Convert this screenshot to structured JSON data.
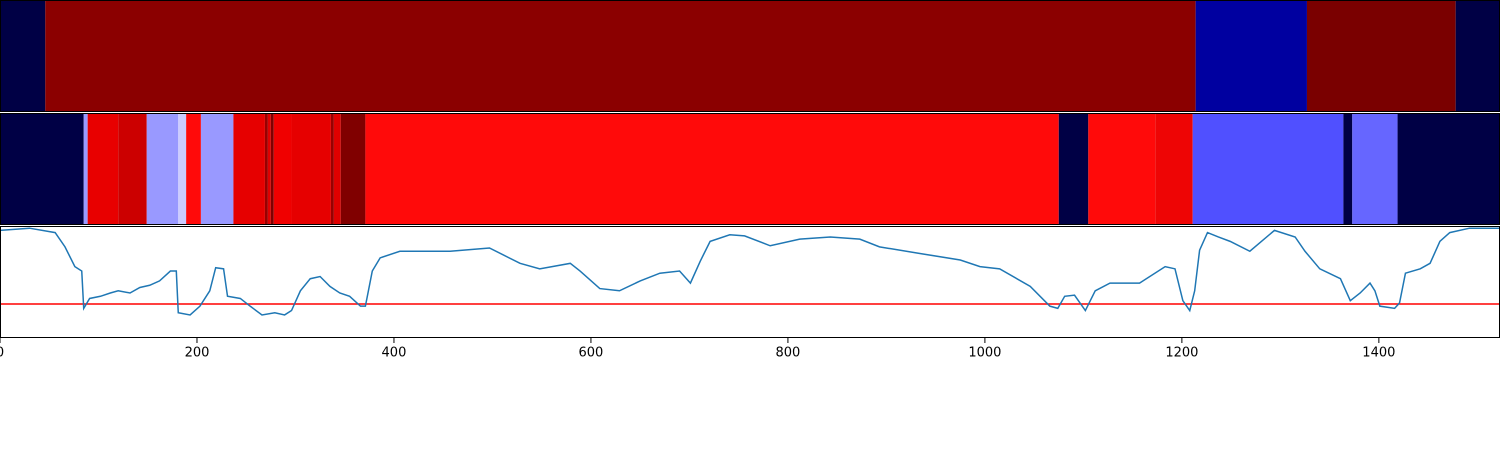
{
  "chart_data": {
    "type": "segments",
    "xlim": [
      0,
      1523
    ],
    "xticks": [
      0,
      200,
      400,
      600,
      800,
      1000,
      1200,
      1400
    ],
    "panels": [
      {
        "type": "segments",
        "segments": [
          {
            "start": 0,
            "end": 46,
            "color": "#000045"
          },
          {
            "start": 46,
            "end": 1214,
            "color": "#8b0000"
          },
          {
            "start": 1214,
            "end": 1327,
            "color": "#0000a0"
          },
          {
            "start": 1327,
            "end": 1478,
            "color": "#7a0000"
          },
          {
            "start": 1478,
            "end": 1523,
            "color": "#000045"
          }
        ]
      },
      {
        "type": "segments",
        "segments": [
          {
            "start": 0,
            "end": 85,
            "color": "#000045"
          },
          {
            "start": 85,
            "end": 89,
            "color": "#9999ff"
          },
          {
            "start": 89,
            "end": 120,
            "color": "#e80000"
          },
          {
            "start": 120,
            "end": 149,
            "color": "#cc0000"
          },
          {
            "start": 149,
            "end": 181,
            "color": "#9999ff"
          },
          {
            "start": 181,
            "end": 189,
            "color": "#ccccff"
          },
          {
            "start": 189,
            "end": 204,
            "color": "#ff0a0a"
          },
          {
            "start": 204,
            "end": 237,
            "color": "#9999ff"
          },
          {
            "start": 237,
            "end": 269,
            "color": "#e60000"
          },
          {
            "start": 269,
            "end": 272,
            "color": "#990000"
          },
          {
            "start": 272,
            "end": 275,
            "color": "#e00000"
          },
          {
            "start": 275,
            "end": 278,
            "color": "#800000"
          },
          {
            "start": 278,
            "end": 296,
            "color": "#f00000"
          },
          {
            "start": 296,
            "end": 336,
            "color": "#e60000"
          },
          {
            "start": 336,
            "end": 339,
            "color": "#990000"
          },
          {
            "start": 339,
            "end": 346,
            "color": "#e00000"
          },
          {
            "start": 346,
            "end": 371,
            "color": "#800000"
          },
          {
            "start": 371,
            "end": 1075,
            "color": "#ff0a0a"
          },
          {
            "start": 1075,
            "end": 1105,
            "color": "#000045"
          },
          {
            "start": 1105,
            "end": 1173,
            "color": "#ff0a0a"
          },
          {
            "start": 1173,
            "end": 1211,
            "color": "#ee0505"
          },
          {
            "start": 1211,
            "end": 1364,
            "color": "#5050ff"
          },
          {
            "start": 1364,
            "end": 1373,
            "color": "#000045"
          },
          {
            "start": 1373,
            "end": 1419,
            "color": "#6666ff"
          },
          {
            "start": 1419,
            "end": 1523,
            "color": "#000045"
          }
        ]
      },
      {
        "type": "line",
        "ylim": [
          0,
          1.02
        ],
        "color": "#1f77b4",
        "threshold": {
          "value": 0.31,
          "color": "#ff0000"
        },
        "x": [
          0,
          30,
          56,
          66,
          76,
          83,
          85,
          91,
          102,
          112,
          120,
          132,
          142,
          152,
          162,
          173,
          179,
          181,
          193,
          203,
          213,
          219,
          227,
          231,
          244,
          254,
          266,
          279,
          289,
          296,
          305,
          315,
          325,
          335,
          345,
          355,
          366,
          371,
          378,
          386,
          406,
          457,
          497,
          528,
          548,
          579,
          589,
          609,
          629,
          650,
          670,
          690,
          701,
          711,
          721,
          741,
          756,
          782,
          812,
          843,
          873,
          893,
          934,
          975,
          995,
          1015,
          1046,
          1066,
          1074,
          1081,
          1091,
          1102,
          1112,
          1127,
          1157,
          1183,
          1193,
          1201,
          1208,
          1213,
          1218,
          1226,
          1237,
          1249,
          1269,
          1294,
          1315,
          1325,
          1340,
          1361,
          1371,
          1381,
          1391,
          1396,
          1401,
          1416,
          1421,
          1427,
          1442,
          1452,
          1462,
          1472,
          1492,
          1523
        ],
        "values": [
          0.98,
          1.0,
          0.96,
          0.83,
          0.65,
          0.61,
          0.27,
          0.36,
          0.38,
          0.41,
          0.43,
          0.41,
          0.46,
          0.48,
          0.52,
          0.61,
          0.61,
          0.23,
          0.21,
          0.29,
          0.43,
          0.64,
          0.63,
          0.38,
          0.36,
          0.29,
          0.21,
          0.23,
          0.21,
          0.25,
          0.43,
          0.54,
          0.56,
          0.47,
          0.41,
          0.38,
          0.29,
          0.29,
          0.61,
          0.73,
          0.79,
          0.79,
          0.82,
          0.68,
          0.63,
          0.68,
          0.61,
          0.45,
          0.43,
          0.52,
          0.59,
          0.61,
          0.5,
          0.7,
          0.88,
          0.94,
          0.93,
          0.84,
          0.9,
          0.92,
          0.9,
          0.83,
          0.77,
          0.71,
          0.65,
          0.63,
          0.47,
          0.29,
          0.27,
          0.38,
          0.39,
          0.25,
          0.43,
          0.5,
          0.5,
          0.65,
          0.63,
          0.34,
          0.25,
          0.43,
          0.8,
          0.96,
          0.92,
          0.88,
          0.79,
          0.98,
          0.92,
          0.79,
          0.63,
          0.54,
          0.34,
          0.41,
          0.5,
          0.43,
          0.29,
          0.27,
          0.32,
          0.59,
          0.63,
          0.68,
          0.88,
          0.96,
          1.0,
          1.0
        ]
      }
    ]
  }
}
